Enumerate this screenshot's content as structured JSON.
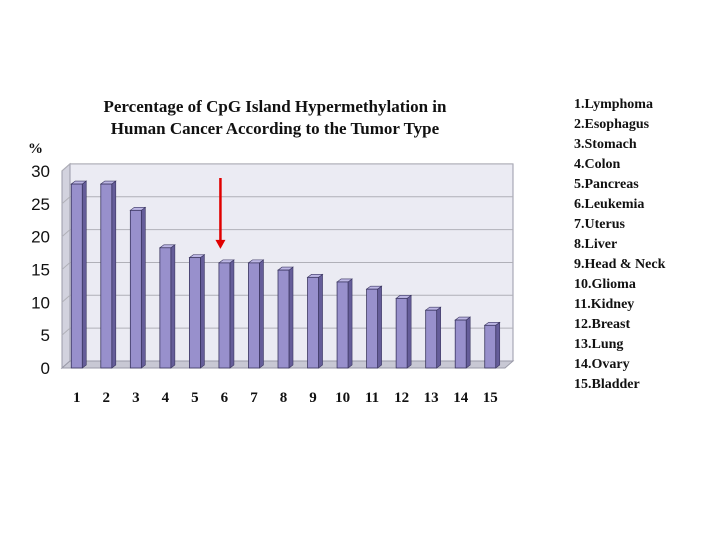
{
  "chart_data": {
    "type": "bar",
    "title_lines": [
      "Percentage of CpG Island Hypermethylation in",
      "Human Cancer According to the Tumor Type"
    ],
    "ylabel": "%",
    "ylim": [
      0,
      30
    ],
    "yticks": [
      "0",
      "5",
      "10",
      "15",
      "20",
      "25",
      "30"
    ],
    "grid": true,
    "legend_position": "right",
    "categories": [
      "1",
      "2",
      "3",
      "4",
      "5",
      "6",
      "7",
      "8",
      "9",
      "10",
      "11",
      "12",
      "13",
      "14",
      "15"
    ],
    "values": [
      28,
      28,
      24,
      18.3,
      16.8,
      16,
      16,
      14.9,
      13.8,
      13.1,
      12,
      10.6,
      8.8,
      7.3,
      6.5
    ],
    "legend": [
      "1.Lymphoma",
      "2.Esophagus",
      "3.Stomach",
      "4.Colon",
      "5.Pancreas",
      "6.Leukemia",
      "7.Uterus",
      "8.Liver",
      "9.Head & Neck",
      "10.Glioma",
      "11.Kidney",
      "12.Breast",
      "13.Lung",
      "14.Ovary",
      "15.Bladder"
    ],
    "highlight_category": "6",
    "colors": {
      "bar_front": "#9890cc",
      "bar_side": "#655d99",
      "bar_top": "#bcb6e4",
      "plot_wall": "#ebebf3",
      "grid": "#b0b0b8",
      "arrow": "#e00000"
    }
  }
}
